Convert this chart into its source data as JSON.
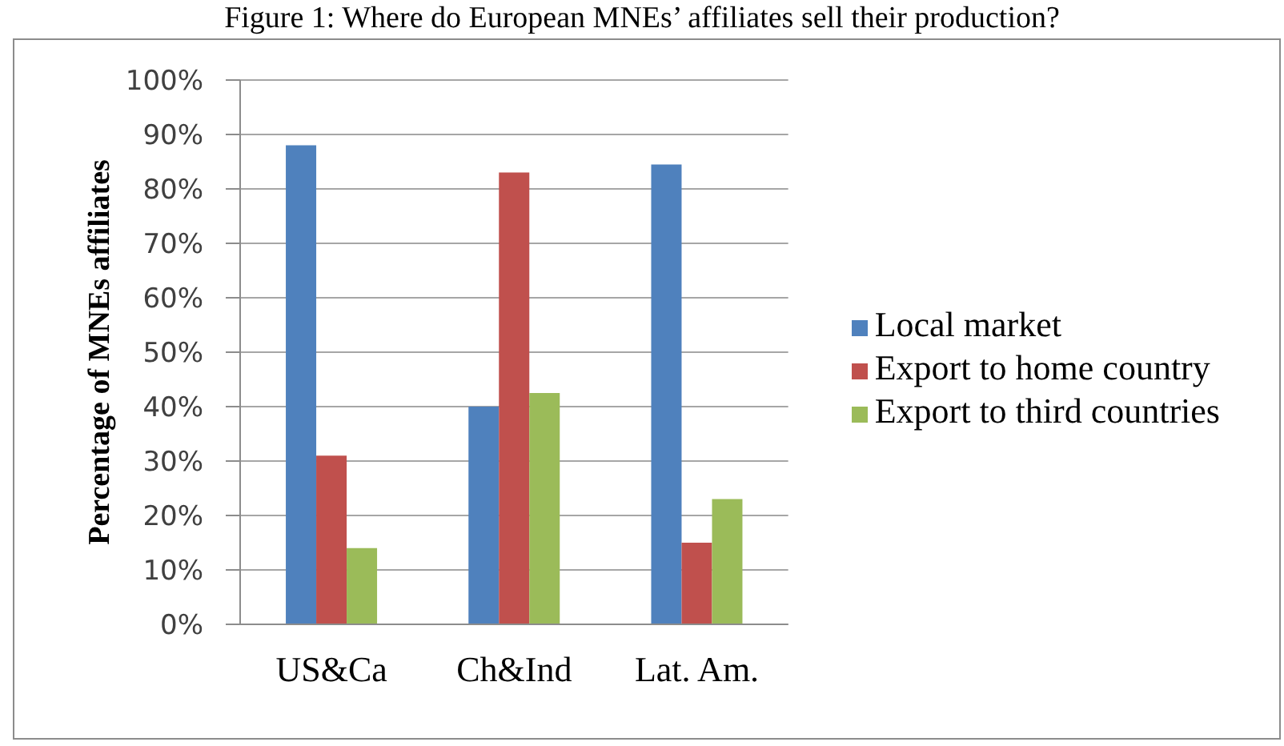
{
  "chart_data": {
    "type": "bar",
    "title": "Figure 1: Where do European MNEs’ affiliates sell their production?",
    "ylabel": "Percentage of MNEs affiliates",
    "categories": [
      "US&Ca",
      "Ch&Ind",
      "Lat. Am."
    ],
    "series": [
      {
        "name": "Local market",
        "color": "#4f81bd",
        "values": [
          88,
          40,
          84.5
        ]
      },
      {
        "name": "Export to home country",
        "color": "#c0504d",
        "values": [
          31,
          83,
          15
        ]
      },
      {
        "name": "Export to third countries",
        "color": "#9bbb59",
        "values": [
          14,
          42.5,
          23
        ]
      }
    ],
    "ylim": [
      0,
      100
    ],
    "yticks": [
      {
        "value": 0,
        "label": "0%"
      },
      {
        "value": 10,
        "label": "10%"
      },
      {
        "value": 20,
        "label": "20%"
      },
      {
        "value": 30,
        "label": "30%"
      },
      {
        "value": 40,
        "label": "40%"
      },
      {
        "value": 50,
        "label": "50%"
      },
      {
        "value": 60,
        "label": "60%"
      },
      {
        "value": 70,
        "label": "70%"
      },
      {
        "value": 80,
        "label": "80%"
      },
      {
        "value": 90,
        "label": "90%"
      },
      {
        "value": 100,
        "label": "100%"
      }
    ],
    "grid": "y",
    "legend": "right"
  }
}
